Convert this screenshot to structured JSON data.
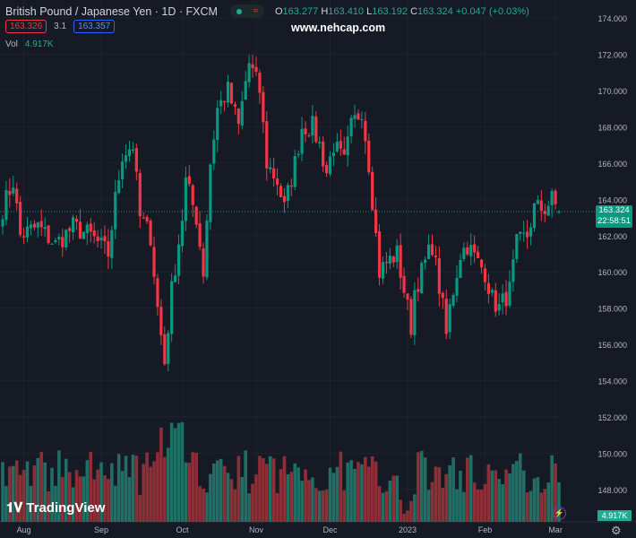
{
  "header": {
    "symbol": "British Pound / Japanese Yen · 1D · FXCM",
    "market_status_icon": "market-open-dot",
    "o_label": "O",
    "o": "163.277",
    "h_label": "H",
    "h": "163.410",
    "l_label": "L",
    "l": "163.192",
    "c_label": "C",
    "c": "163.324",
    "change": "+0.047 (+0.03%)",
    "bid": "163.326",
    "spread": "3.1",
    "ask": "163.357",
    "vol_label": "Vol",
    "vol_value": "4.917K"
  },
  "watermark": "www.nehcap.com",
  "logo": "TradingView",
  "price_label": {
    "price": "163.324",
    "countdown": "22:58:51"
  },
  "volume_label": "4.917K",
  "colors": {
    "up": "#089981",
    "down": "#f23645",
    "up_vol": "#1f6f64",
    "down_vol": "#8c2f36",
    "bg": "#161a25",
    "grid": "#1e222d"
  },
  "chart_data": {
    "type": "candlestick",
    "title": "British Pound / Japanese Yen · 1D · FXCM",
    "ylim": [
      147,
      175
    ],
    "y_ticks": [
      "174.000",
      "172.000",
      "170.000",
      "168.000",
      "166.000",
      "164.000",
      "162.000",
      "160.000",
      "158.000",
      "156.000",
      "154.000",
      "152.000",
      "150.000",
      "148.000"
    ],
    "x_ticks": [
      "Aug",
      "Sep",
      "Oct",
      "Nov",
      "Dec",
      "2023",
      "Feb",
      "Mar"
    ],
    "x_tick_candle_index": [
      6,
      28,
      51,
      72,
      93,
      115,
      137,
      157
    ],
    "candle_count": 159,
    "close_keypoints": [
      [
        0,
        163.5
      ],
      [
        3,
        165
      ],
      [
        5,
        162
      ],
      [
        10,
        162.5
      ],
      [
        15,
        161.5
      ],
      [
        20,
        162.5
      ],
      [
        25,
        162
      ],
      [
        30,
        161
      ],
      [
        32,
        164
      ],
      [
        34,
        166.5
      ],
      [
        37,
        167
      ],
      [
        39,
        163
      ],
      [
        42,
        162
      ],
      [
        44,
        158
      ],
      [
        46,
        155
      ],
      [
        47,
        157
      ],
      [
        48,
        159
      ],
      [
        51,
        163
      ],
      [
        52,
        165
      ],
      [
        55,
        163
      ],
      [
        57,
        160
      ],
      [
        59,
        166
      ],
      [
        61,
        169
      ],
      [
        64,
        170
      ],
      [
        67,
        168
      ],
      [
        69,
        170.5
      ],
      [
        70,
        171.5
      ],
      [
        73,
        170
      ],
      [
        75,
        166
      ],
      [
        78,
        165
      ],
      [
        80,
        163.5
      ],
      [
        83,
        166
      ],
      [
        85,
        168
      ],
      [
        88,
        168
      ],
      [
        90,
        167
      ],
      [
        92,
        165.5
      ],
      [
        94,
        167
      ],
      [
        97,
        166
      ],
      [
        99,
        168
      ],
      [
        102,
        169
      ],
      [
        104,
        166
      ],
      [
        106,
        162
      ],
      [
        107,
        160
      ],
      [
        109,
        160.5
      ],
      [
        112,
        161
      ],
      [
        115,
        158
      ],
      [
        116,
        157
      ],
      [
        117,
        159
      ],
      [
        120,
        160.5
      ],
      [
        122,
        161.5
      ],
      [
        125,
        158
      ],
      [
        126,
        156.5
      ],
      [
        127,
        158
      ],
      [
        130,
        161
      ],
      [
        132,
        161.5
      ],
      [
        135,
        160.5
      ],
      [
        137,
        160
      ],
      [
        139,
        158.5
      ],
      [
        141,
        158
      ],
      [
        144,
        159
      ],
      [
        146,
        161.5
      ],
      [
        149,
        162
      ],
      [
        151,
        163.5
      ],
      [
        154,
        163.5
      ],
      [
        156,
        164
      ],
      [
        158,
        163.324
      ]
    ],
    "last": {
      "open": 163.277,
      "high": 163.41,
      "low": 163.192,
      "close": 163.324,
      "volume": "4.917K"
    }
  }
}
